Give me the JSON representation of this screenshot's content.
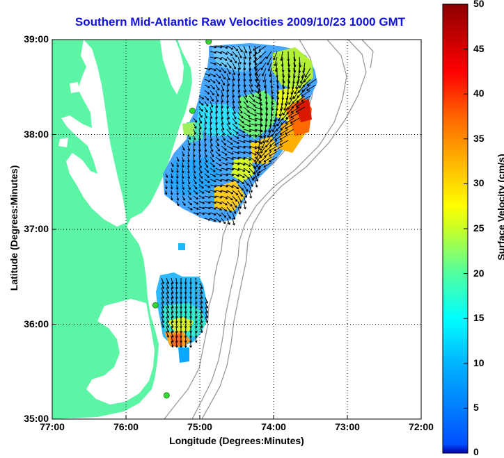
{
  "title": "Southern Mid-Atlantic Raw Velocities 2009/10/23 1000 GMT",
  "x_axis": {
    "label": "Longitude (Degrees:Minutes)",
    "ticks": [
      "77:00",
      "76:00",
      "75:00",
      "74:00",
      "73:00",
      "72:00"
    ]
  },
  "y_axis": {
    "label": "Latitude (Degrees:Minutes)",
    "ticks": [
      "39:00",
      "38:00",
      "37:00",
      "36:00",
      "35:00"
    ]
  },
  "colorbar": {
    "label": "Surface Velocity (cm/s)",
    "ticks": [
      "50",
      "45",
      "40",
      "35",
      "30",
      "25",
      "20",
      "15",
      "10",
      "5",
      "0"
    ],
    "min": 0,
    "max": 50,
    "colormap": "jet"
  },
  "map": {
    "extent": {
      "lon": [
        -77,
        -72
      ],
      "lat": [
        35,
        39
      ]
    },
    "land_color": "#5cf5a6",
    "water_color": "#ffffff",
    "bathymetry_color": "#9a9a9a",
    "station_color": "#36d836",
    "grid": "dotted",
    "stations": [
      {
        "lon": -74.88,
        "lat": 38.98
      },
      {
        "lon": -75.1,
        "lat": 38.25
      },
      {
        "lon": -75.6,
        "lat": 36.2
      },
      {
        "lon": -75.45,
        "lat": 35.25
      }
    ]
  }
}
